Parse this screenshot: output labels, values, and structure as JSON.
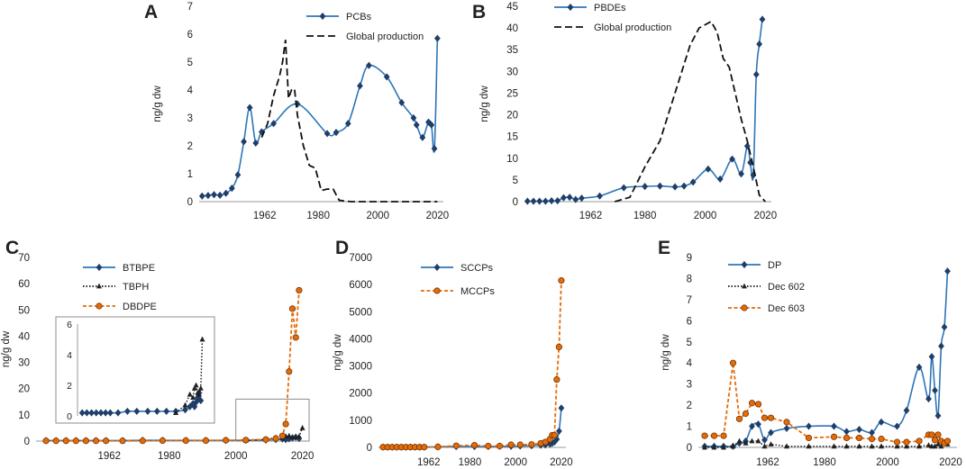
{
  "panels": [
    {
      "letter": "A",
      "ylabel": "ng/g dw",
      "ylim": [
        0,
        7
      ],
      "yticks": [
        0,
        1,
        2,
        3,
        4,
        5,
        6,
        7
      ],
      "xlim": [
        1940,
        2022
      ],
      "xticks": [
        1962,
        1980,
        2000,
        2020
      ],
      "series": [
        {
          "name": "PCBs",
          "style": "blue-diamond",
          "color": "#2e75b6",
          "x": [
            1941,
            1943,
            1945,
            1947,
            1949,
            1951,
            1953,
            1955,
            1957,
            1959,
            1961,
            1965,
            1973,
            1983,
            1986,
            1990,
            1994,
            1997,
            2003,
            2008,
            2012,
            2013,
            2015,
            2017,
            2018,
            2019,
            2020
          ],
          "y": [
            0.2,
            0.22,
            0.25,
            0.23,
            0.3,
            0.48,
            0.96,
            2.15,
            3.37,
            2.1,
            2.5,
            2.8,
            3.5,
            2.44,
            2.48,
            2.8,
            4.15,
            4.88,
            4.47,
            3.55,
            3.0,
            2.75,
            2.3,
            2.85,
            2.75,
            1.9,
            5.85
          ]
        },
        {
          "name": "Global production",
          "style": "black-dash",
          "color": "#111111",
          "x": [
            1961,
            1963,
            1965,
            1967,
            1968,
            1969,
            1970,
            1971,
            1972,
            1973,
            1975,
            1977,
            1979,
            1981,
            1983,
            1985,
            1987,
            1989,
            1991,
            2000,
            2010,
            2020
          ],
          "y": [
            2.3,
            2.8,
            3.8,
            4.5,
            5.0,
            5.8,
            3.7,
            4.0,
            4.05,
            3.1,
            2.0,
            1.3,
            1.2,
            0.4,
            0.45,
            0.45,
            0.05,
            0.02,
            0.0,
            0.0,
            0.0,
            0.0
          ]
        }
      ]
    },
    {
      "letter": "B",
      "ylabel": "ng/g dw",
      "ylim": [
        0,
        45
      ],
      "yticks": [
        0,
        5,
        10,
        15,
        20,
        25,
        30,
        35,
        40,
        45
      ],
      "xlim": [
        1940,
        2022
      ],
      "xticks": [
        1962,
        1980,
        2000,
        2020
      ],
      "series": [
        {
          "name": "PBDEs",
          "style": "blue-diamond",
          "color": "#2e75b6",
          "x": [
            1941,
            1943,
            1945,
            1947,
            1949,
            1951,
            1953,
            1955,
            1957,
            1959,
            1965,
            1973,
            1980,
            1985,
            1990,
            1993,
            1996,
            2001,
            2005,
            2009,
            2012,
            2014,
            2015,
            2016,
            2017,
            2018,
            2019
          ],
          "y": [
            0.1,
            0.1,
            0.1,
            0.1,
            0.2,
            0.2,
            0.9,
            1.0,
            0.5,
            0.8,
            1.3,
            3.2,
            3.5,
            3.6,
            3.4,
            3.6,
            4.5,
            7.5,
            5.2,
            9.8,
            6.4,
            12.8,
            9.0,
            6.1,
            29.3,
            36.3,
            42.0
          ]
        },
        {
          "name": "Global production",
          "style": "black-dash",
          "color": "#111111",
          "x": [
            1970,
            1975,
            1980,
            1985,
            1990,
            1995,
            1998,
            2002,
            2004,
            2006,
            2008,
            2010,
            2012,
            2014,
            2016,
            2018,
            2020
          ],
          "y": [
            0,
            1.0,
            8.0,
            14.0,
            25.0,
            36.0,
            40.0,
            41.5,
            39.0,
            33.0,
            31.0,
            25.0,
            19.0,
            14.0,
            8.0,
            1.5,
            0
          ]
        }
      ]
    },
    {
      "letter": "C",
      "ylabel": "ng/g dw",
      "ylim": [
        0,
        70
      ],
      "yticks": [
        0,
        10,
        20,
        30,
        40,
        50,
        60,
        70
      ],
      "xlim": [
        1940,
        2022
      ],
      "xticks": [
        1962,
        1980,
        2000,
        2020
      ],
      "series": [
        {
          "name": "BTBPE",
          "style": "blue-diamond",
          "color": "#2e75b6",
          "x": [
            1943,
            1946,
            1949,
            1952,
            1955,
            1958,
            1961,
            1966,
            1972,
            1978,
            1985,
            1991,
            1997,
            2003,
            2009,
            2012,
            2014,
            2015,
            2016,
            2017,
            2018,
            2019
          ],
          "y": [
            0.2,
            0.2,
            0.2,
            0.2,
            0.2,
            0.2,
            0.2,
            0.2,
            0.3,
            0.3,
            0.3,
            0.3,
            0.3,
            0.3,
            0.4,
            0.6,
            0.8,
            0.6,
            0.9,
            1.2,
            1.5,
            1.0
          ]
        },
        {
          "name": "TBPH",
          "style": "black-dot-triangle",
          "color": "#111111",
          "x": [
            2003,
            2009,
            2012,
            2014,
            2015,
            2016,
            2017,
            2018,
            2019,
            2020
          ],
          "y": [
            0.2,
            0.7,
            1.4,
            1.2,
            1.8,
            2.0,
            1.5,
            1.4,
            1.8,
            5.0
          ]
        },
        {
          "name": "DBDPE",
          "style": "orange-circle",
          "color": "#e36c0a",
          "x": [
            1943,
            1946,
            1949,
            1952,
            1955,
            1958,
            1961,
            1966,
            1972,
            1978,
            1985,
            1991,
            1997,
            2003,
            2009,
            2012,
            2014,
            2015,
            2016,
            2017,
            2018,
            2019
          ],
          "y": [
            0.1,
            0.1,
            0.1,
            0.1,
            0.1,
            0.1,
            0.1,
            0.1,
            0.1,
            0.2,
            0.2,
            0.2,
            0.3,
            0.4,
            0.6,
            1.0,
            2.0,
            6.5,
            26.5,
            50.5,
            39.5,
            57.5
          ]
        }
      ],
      "inset": {
        "ylim": [
          0,
          6
        ],
        "yticks": [
          0,
          2,
          4,
          6
        ],
        "xlim": [
          1940,
          2022
        ]
      }
    },
    {
      "letter": "D",
      "ylabel": "ng/g dw",
      "ylim": [
        0,
        7000
      ],
      "yticks": [
        0,
        1000,
        2000,
        3000,
        4000,
        5000,
        6000,
        7000
      ],
      "xlim": [
        1940,
        2022
      ],
      "xticks": [
        1962,
        1980,
        2000,
        2020
      ],
      "series": [
        {
          "name": "SCCPs",
          "style": "blue-diamond",
          "color": "#2e75b6",
          "x": [
            1942,
            1944,
            1946,
            1948,
            1950,
            1952,
            1954,
            1956,
            1958,
            1960,
            1966,
            1974,
            1982,
            1988,
            1993,
            1998,
            2002,
            2007,
            2011,
            2013,
            2015,
            2016,
            2017,
            2018,
            2019,
            2020
          ],
          "y": [
            10,
            10,
            10,
            10,
            10,
            10,
            10,
            10,
            10,
            10,
            20,
            30,
            30,
            30,
            40,
            40,
            50,
            60,
            80,
            90,
            120,
            150,
            200,
            300,
            600,
            1450
          ]
        },
        {
          "name": "MCCPs",
          "style": "orange-circle",
          "color": "#e36c0a",
          "x": [
            1942,
            1944,
            1946,
            1948,
            1950,
            1952,
            1954,
            1956,
            1958,
            1960,
            1966,
            1974,
            1982,
            1988,
            1993,
            1998,
            2002,
            2007,
            2011,
            2013,
            2015,
            2016,
            2017,
            2018,
            2019,
            2020
          ],
          "y": [
            10,
            10,
            10,
            10,
            10,
            10,
            10,
            10,
            10,
            10,
            20,
            60,
            80,
            50,
            50,
            100,
            100,
            110,
            150,
            200,
            300,
            450,
            450,
            2500,
            3700,
            6150
          ]
        }
      ]
    },
    {
      "letter": "E",
      "ylabel": "ng/g dw",
      "ylim": [
        0,
        9
      ],
      "yticks": [
        0,
        1,
        2,
        3,
        4,
        5,
        6,
        7,
        8,
        9
      ],
      "xlim": [
        1940,
        2022
      ],
      "xticks": [
        1962,
        1980,
        2000,
        2020
      ],
      "series": [
        {
          "name": "DP",
          "style": "blue-diamond",
          "color": "#2e75b6",
          "x": [
            1942,
            1945,
            1948,
            1951,
            1953,
            1955,
            1957,
            1959,
            1961,
            1963,
            1968,
            1975,
            1983,
            1987,
            1991,
            1995,
            1998,
            2003,
            2006,
            2010,
            2013,
            2014,
            2015,
            2016,
            2017,
            2018,
            2019
          ],
          "y": [
            0.05,
            0.05,
            0.05,
            0.05,
            0.2,
            0.3,
            1.0,
            1.1,
            0.35,
            0.7,
            0.9,
            1.0,
            1.0,
            0.75,
            0.85,
            0.7,
            1.2,
            1.0,
            1.75,
            3.8,
            2.3,
            4.3,
            2.7,
            1.5,
            4.8,
            5.7,
            8.35
          ]
        },
        {
          "name": "Dec 602",
          "style": "black-dot-triangle",
          "color": "#111111",
          "x": [
            1942,
            1945,
            1948,
            1951,
            1953,
            1955,
            1957,
            1959,
            1961,
            1963,
            1968,
            1975,
            1983,
            1987,
            1991,
            1995,
            1998,
            2003,
            2006,
            2010,
            2013,
            2014,
            2015,
            2016,
            2017,
            2018,
            2019
          ],
          "y": [
            0.0,
            0.0,
            0.0,
            0.05,
            0.3,
            0.2,
            0.3,
            0.3,
            0.05,
            0.15,
            0.05,
            0.05,
            0.05,
            0.05,
            0.05,
            0.05,
            0.05,
            0.05,
            0.05,
            0.05,
            0.1,
            0.05,
            0.05,
            0.15,
            0.05,
            0.2,
            0.15
          ]
        },
        {
          "name": "Dec 603",
          "style": "orange-circle",
          "color": "#e36c0a",
          "x": [
            1942,
            1945,
            1948,
            1951,
            1953,
            1955,
            1957,
            1959,
            1961,
            1963,
            1968,
            1975,
            1983,
            1987,
            1991,
            1995,
            1998,
            2003,
            2006,
            2010,
            2013,
            2014,
            2015,
            2016,
            2017,
            2018,
            2019
          ],
          "y": [
            0.55,
            0.55,
            0.55,
            4.0,
            1.35,
            1.6,
            2.1,
            2.05,
            1.4,
            1.4,
            1.2,
            0.45,
            0.5,
            0.45,
            0.45,
            0.4,
            0.4,
            0.25,
            0.25,
            0.3,
            0.6,
            0.6,
            0.35,
            0.6,
            0.3,
            0.2,
            0.3
          ]
        }
      ]
    }
  ]
}
